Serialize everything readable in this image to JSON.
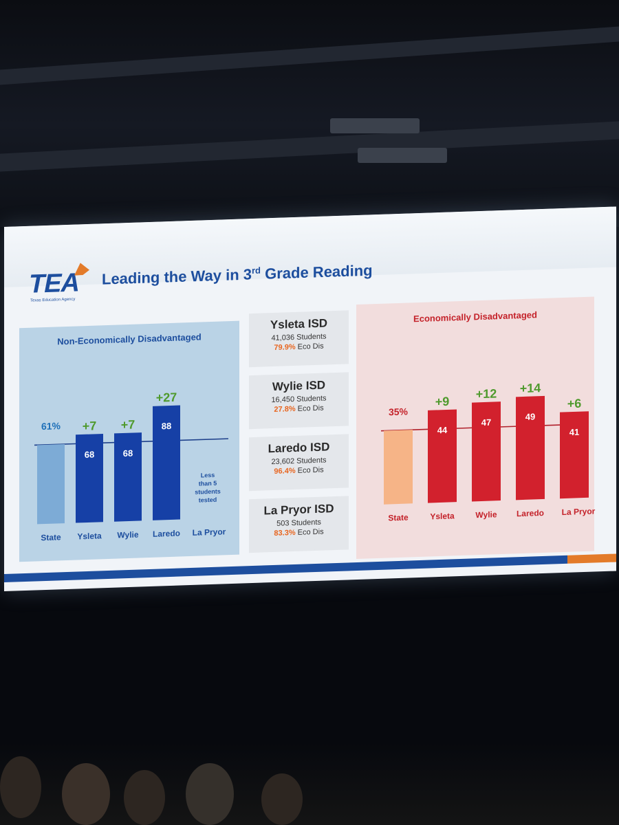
{
  "slide": {
    "logo_text": "TEA",
    "logo_subtitle": "Texas Education Agency",
    "title_pre": "Leading the Way in 3",
    "title_sup": "rd",
    "title_post": " Grade Reading"
  },
  "districts": [
    {
      "name": "Ysleta ISD",
      "students": "41,036 Students",
      "eco_pct": "79.9%",
      "eco_label": "Eco Dis"
    },
    {
      "name": "Wylie ISD",
      "students": "16,450 Students",
      "eco_pct": "27.8%",
      "eco_label": "Eco Dis"
    },
    {
      "name": "Laredo ISD",
      "students": "23,602 Students",
      "eco_pct": "96.4%",
      "eco_label": "Eco Dis"
    },
    {
      "name": "La Pryor ISD",
      "students": "503 Students",
      "eco_pct": "83.3%",
      "eco_label": "Eco Dis"
    }
  ],
  "colors": {
    "blue_bar": "#1640a6",
    "blue_state": "#7dabd6",
    "red_bar": "#d2212d",
    "red_state": "#f6b487",
    "gain_green": "#4f9a2d",
    "blue_text": "#1d4e9e",
    "red_text": "#c4222a"
  },
  "chart_data": [
    {
      "type": "bar",
      "title": "Non-Economically Disadvantaged",
      "categories": [
        "State",
        "Ysleta",
        "Wylie",
        "Laredo",
        "La Pryor"
      ],
      "values": [
        61,
        68,
        68,
        88,
        null
      ],
      "value_labels": [
        "61%",
        "68",
        "68",
        "88",
        ""
      ],
      "gains": [
        "",
        "+7",
        "+7",
        "+27",
        ""
      ],
      "reference_line": 61,
      "note": [
        "Less",
        "than 5",
        "students",
        "tested"
      ],
      "ylim": [
        0,
        100
      ]
    },
    {
      "type": "bar",
      "title": "Economically Disadvantaged",
      "categories": [
        "State",
        "Ysleta",
        "Wylie",
        "Laredo",
        "La Pryor"
      ],
      "values": [
        35,
        44,
        47,
        49,
        41
      ],
      "value_labels": [
        "35%",
        "44",
        "47",
        "49",
        "41"
      ],
      "gains": [
        "",
        "+9",
        "+12",
        "+14",
        "+6"
      ],
      "reference_line": 35,
      "ylim": [
        0,
        100
      ]
    }
  ]
}
